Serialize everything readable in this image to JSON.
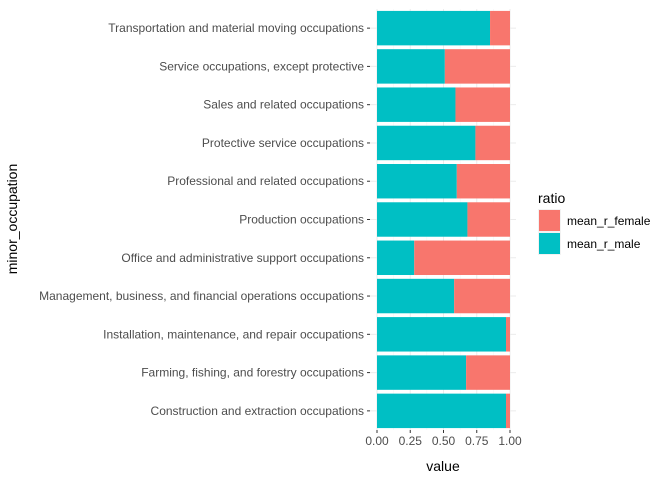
{
  "chart_data": {
    "type": "bar",
    "orientation": "horizontal",
    "stacked": true,
    "xlabel": "value",
    "ylabel": "minor_occupation",
    "xlim": [
      0,
      1
    ],
    "x_ticks": [
      "0.00",
      "0.25",
      "0.50",
      "0.75",
      "1.00"
    ],
    "grid": true,
    "legend_position": "right",
    "legend_title": "ratio",
    "categories": [
      "Transportation and material moving occupations",
      "Service occupations, except protective",
      "Sales and related occupations",
      "Protective service occupations",
      "Professional and related occupations",
      "Production occupations",
      "Office and administrative support occupations",
      "Management, business, and financial operations occupations",
      "Installation, maintenance, and repair occupations",
      "Farming, fishing, and forestry occupations",
      "Construction and extraction occupations"
    ],
    "series": [
      {
        "name": "mean_r_male",
        "color": "#00BFC4",
        "values": [
          0.85,
          0.51,
          0.59,
          0.74,
          0.6,
          0.68,
          0.28,
          0.58,
          0.97,
          0.67,
          0.97
        ]
      },
      {
        "name": "mean_r_female",
        "color": "#F8766D",
        "values": [
          0.15,
          0.49,
          0.41,
          0.26,
          0.4,
          0.32,
          0.72,
          0.42,
          0.03,
          0.33,
          0.03
        ]
      }
    ],
    "legend_order": [
      "mean_r_female",
      "mean_r_male"
    ]
  }
}
